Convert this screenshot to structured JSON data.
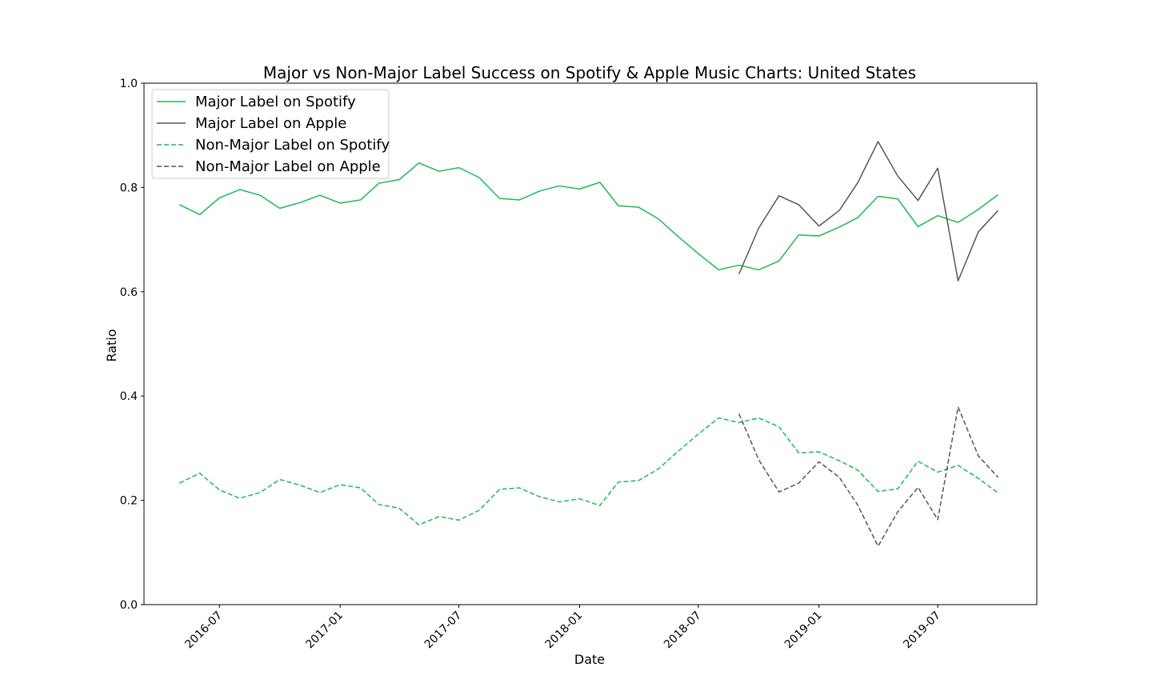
{
  "chart_data": {
    "type": "line",
    "title": "Major vs Non-Major Label Success on Spotify & Apple Music Charts: United States",
    "xlabel": "Date",
    "ylabel": "Ratio",
    "ylim": [
      0.0,
      1.0
    ],
    "xlim": [
      "2016-03-08",
      "2019-11-29"
    ],
    "yticks": [
      "0.0",
      "0.2",
      "0.4",
      "0.6",
      "0.8",
      "1.0"
    ],
    "xticks": [
      "2016-07",
      "2017-01",
      "2017-07",
      "2018-01",
      "2018-07",
      "2019-01",
      "2019-07"
    ],
    "grid": false,
    "legend_position": "top-left",
    "colors": {
      "spotify": "#1DB954",
      "apple": "#555555"
    },
    "series": [
      {
        "name": "Major Label on Spotify",
        "color": "#1DB954",
        "style": "solid",
        "x": [
          "2016-05",
          "2016-06",
          "2016-07",
          "2016-08",
          "2016-09",
          "2016-10",
          "2016-11",
          "2016-12",
          "2017-01",
          "2017-02",
          "2017-03",
          "2017-04",
          "2017-05",
          "2017-06",
          "2017-07",
          "2017-08",
          "2017-09",
          "2017-10",
          "2017-11",
          "2017-12",
          "2018-01",
          "2018-02",
          "2018-03",
          "2018-04",
          "2018-05",
          "2018-06",
          "2018-07",
          "2018-08",
          "2018-09",
          "2018-10",
          "2018-11",
          "2018-12",
          "2019-01",
          "2019-02",
          "2019-03",
          "2019-04",
          "2019-05",
          "2019-06",
          "2019-07",
          "2019-08",
          "2019-09",
          "2019-10"
        ],
        "values": [
          0.767,
          0.748,
          0.78,
          0.796,
          0.785,
          0.76,
          0.771,
          0.785,
          0.77,
          0.776,
          0.808,
          0.815,
          0.847,
          0.831,
          0.838,
          0.819,
          0.779,
          0.776,
          0.793,
          0.803,
          0.797,
          0.81,
          0.765,
          0.762,
          0.74,
          0.705,
          0.673,
          0.642,
          0.651,
          0.642,
          0.659,
          0.709,
          0.707,
          0.724,
          0.742,
          0.783,
          0.778,
          0.725,
          0.746,
          0.733,
          0.758,
          0.786
        ]
      },
      {
        "name": "Major Label on Apple",
        "color": "#555555",
        "style": "solid",
        "x": [
          "2018-09",
          "2018-10",
          "2018-11",
          "2018-12",
          "2019-01",
          "2019-02",
          "2019-03",
          "2019-04",
          "2019-05",
          "2019-06",
          "2019-07",
          "2019-08",
          "2019-09",
          "2019-10"
        ],
        "values": [
          0.634,
          0.722,
          0.784,
          0.767,
          0.726,
          0.756,
          0.809,
          0.888,
          0.822,
          0.775,
          0.837,
          0.621,
          0.715,
          0.756
        ]
      },
      {
        "name": "Non-Major Label on Spotify",
        "color": "#1DB954",
        "style": "dashed",
        "x": [
          "2016-05",
          "2016-06",
          "2016-07",
          "2016-08",
          "2016-09",
          "2016-10",
          "2016-11",
          "2016-12",
          "2017-01",
          "2017-02",
          "2017-03",
          "2017-04",
          "2017-05",
          "2017-06",
          "2017-07",
          "2017-08",
          "2017-09",
          "2017-10",
          "2017-11",
          "2017-12",
          "2018-01",
          "2018-02",
          "2018-03",
          "2018-04",
          "2018-05",
          "2018-06",
          "2018-07",
          "2018-08",
          "2018-09",
          "2018-10",
          "2018-11",
          "2018-12",
          "2019-01",
          "2019-02",
          "2019-03",
          "2019-04",
          "2019-05",
          "2019-06",
          "2019-07",
          "2019-08",
          "2019-09",
          "2019-10"
        ],
        "values": [
          0.233,
          0.252,
          0.22,
          0.204,
          0.215,
          0.24,
          0.229,
          0.215,
          0.23,
          0.224,
          0.192,
          0.185,
          0.153,
          0.169,
          0.162,
          0.181,
          0.221,
          0.224,
          0.207,
          0.197,
          0.203,
          0.19,
          0.235,
          0.238,
          0.26,
          0.295,
          0.327,
          0.358,
          0.349,
          0.358,
          0.341,
          0.291,
          0.293,
          0.276,
          0.258,
          0.217,
          0.222,
          0.275,
          0.254,
          0.267,
          0.242,
          0.214
        ]
      },
      {
        "name": "Non-Major Label on Apple",
        "color": "#555555",
        "style": "dashed",
        "x": [
          "2018-09",
          "2018-10",
          "2018-11",
          "2018-12",
          "2019-01",
          "2019-02",
          "2019-03",
          "2019-04",
          "2019-05",
          "2019-06",
          "2019-07",
          "2019-08",
          "2019-09",
          "2019-10"
        ],
        "values": [
          0.366,
          0.278,
          0.216,
          0.233,
          0.274,
          0.244,
          0.191,
          0.112,
          0.178,
          0.225,
          0.163,
          0.379,
          0.285,
          0.244
        ]
      }
    ]
  }
}
